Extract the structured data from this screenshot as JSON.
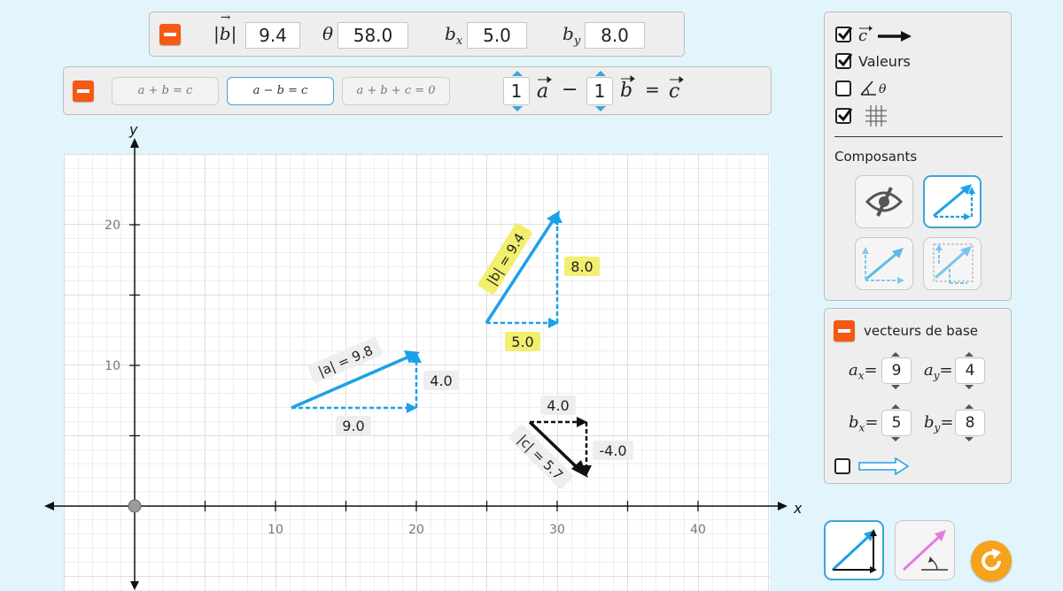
{
  "top_panel": {
    "mag_b_label": "|b|",
    "mag_b": "9.4",
    "theta_label": "θ",
    "theta": "58.0",
    "bx_label": "b",
    "bx_sub": "x",
    "bx": "5.0",
    "by_label": "b",
    "by_sub": "y",
    "by": "8.0"
  },
  "equation_panel": {
    "modes": [
      "a + b = c",
      "a − b = c",
      "a + b + c = 0"
    ],
    "selected_mode": 1,
    "coef_a": "1",
    "coef_b": "1",
    "eq_a": "a",
    "eq_minus": "−",
    "eq_b": "b",
    "eq_equals": "=",
    "eq_c": "c"
  },
  "graph": {
    "x_axis_label": "x",
    "y_axis_label": "y",
    "x_ticks": [
      "10",
      "20",
      "30",
      "40"
    ],
    "y_ticks": [
      "10",
      "20"
    ],
    "vector_a": {
      "label": "|a| = 9.8",
      "x_comp": "9.0",
      "y_comp": "4.0",
      "color": "#1ba1e8"
    },
    "vector_b": {
      "label": "|b| = 9.4",
      "x_comp": "5.0",
      "y_comp": "8.0",
      "color": "#1ba1e8",
      "highlight": "#f2ee6e"
    },
    "vector_c": {
      "label": "|c| = 5.7",
      "x_comp": "4.0",
      "y_comp": "-4.0",
      "color": "#111111"
    }
  },
  "options_panel": {
    "show_c_label": "c",
    "show_c_checked": true,
    "values_label": "Valeurs",
    "values_checked": true,
    "angle_label": "θ",
    "angle_checked": false,
    "grid_checked": true,
    "components_title": "Composants",
    "component_modes": [
      "hidden-eye-icon",
      "triangle-components-icon",
      "parallelogram-components-icon",
      "offset-components-icon"
    ],
    "selected_component_mode": 1
  },
  "basis_panel": {
    "title": "vecteurs de base",
    "ax_label": "a",
    "ax_sub": "x",
    "ax": "9",
    "ay_label": "a",
    "ay_sub": "y",
    "ay": "4",
    "bx_label": "b",
    "bx_sub": "x",
    "bx": "5",
    "by_label": "b",
    "by_sub": "y",
    "by": "8",
    "show_basis_checked": false
  },
  "colors": {
    "accent": "#f45a13",
    "vector_blue": "#1ba1e8",
    "select_border": "#3ea3db",
    "reset_orange": "#f6a21b",
    "pink_vector": "#e27de0"
  }
}
